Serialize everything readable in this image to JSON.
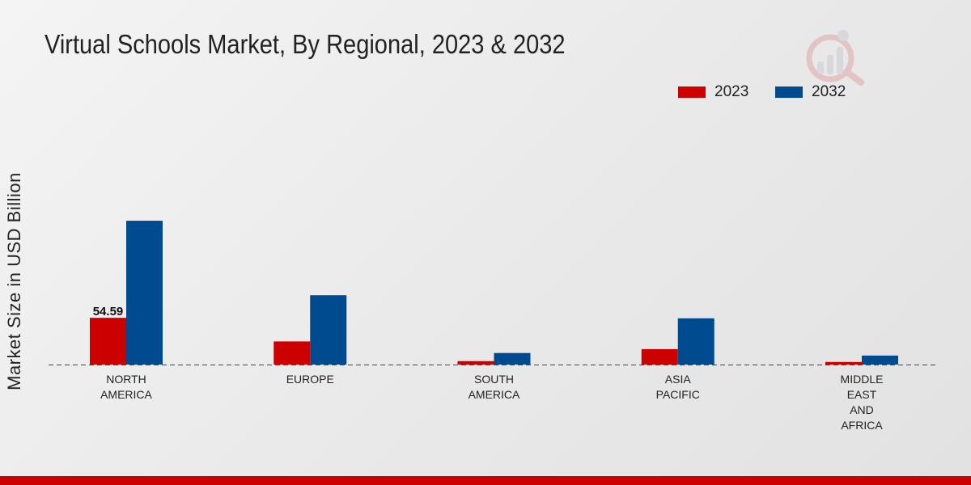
{
  "chart_data": {
    "type": "bar",
    "title": "Virtual Schools Market, By Regional, 2023 & 2032",
    "xlabel": "",
    "ylabel": "Market Size in USD Billion",
    "categories": [
      [
        "NORTH",
        "AMERICA"
      ],
      [
        "EUROPE"
      ],
      [
        "SOUTH",
        "AMERICA"
      ],
      [
        "ASIA",
        "PACIFIC"
      ],
      [
        "MIDDLE",
        "EAST",
        "AND",
        "AFRICA"
      ]
    ],
    "series": [
      {
        "name": "2023",
        "color": "#cc0000",
        "values": [
          54.59,
          27.0,
          4.0,
          18.0,
          3.0
        ]
      },
      {
        "name": "2032",
        "color": "#004a8f",
        "values": [
          168.0,
          81.0,
          13.5,
          54.0,
          10.5
        ]
      }
    ],
    "data_labels": [
      {
        "series": 0,
        "index": 0,
        "text": "54.59"
      }
    ],
    "ylim": [
      0,
      220
    ],
    "grid": false,
    "legend_position": "top-right"
  }
}
